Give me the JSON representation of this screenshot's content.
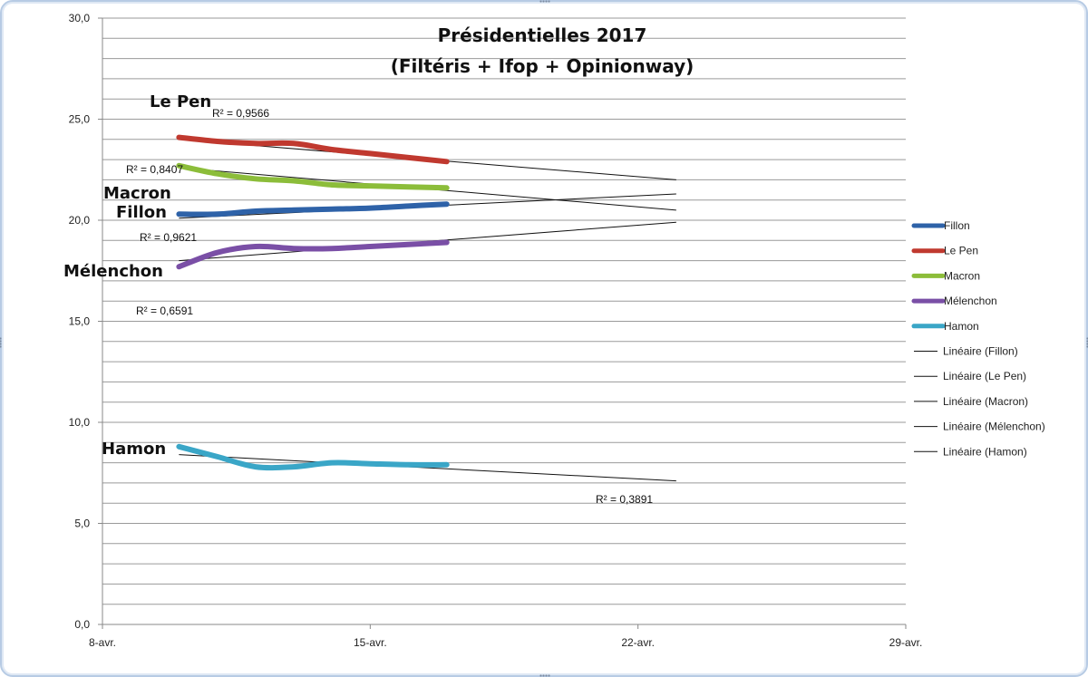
{
  "chart_data": {
    "type": "line",
    "title": "Présidentielles 2017",
    "subtitle": "(Filtéris + Ifop + Opinionway)",
    "ylim": [
      0,
      30
    ],
    "y_ticks": [
      "0,0",
      "5,0",
      "10,0",
      "15,0",
      "20,0",
      "25,0",
      "30,0"
    ],
    "x_ticks": [
      "8-avr.",
      "15-avr.",
      "22-avr.",
      "29-avr."
    ],
    "x_tick_dates": [
      "2017-04-08",
      "2017-04-15",
      "2017-04-22",
      "2017-04-29"
    ],
    "grid": true,
    "legend_position": "right",
    "series": [
      {
        "name": "Fillon",
        "color": "#2e62a8",
        "points": [
          [
            "2017-04-10",
            20.3
          ],
          [
            "2017-04-11",
            20.3
          ],
          [
            "2017-04-12",
            20.45
          ],
          [
            "2017-04-13",
            20.5
          ],
          [
            "2017-04-14",
            20.55
          ],
          [
            "2017-04-15",
            20.6
          ],
          [
            "2017-04-16",
            20.7
          ],
          [
            "2017-04-17",
            20.8
          ]
        ],
        "trend": {
          "start": [
            "2017-04-10",
            20.1
          ],
          "end": [
            "2017-04-23",
            21.3
          ],
          "r2": "R² = 0,9621"
        }
      },
      {
        "name": "Le Pen",
        "color": "#c0392f",
        "points": [
          [
            "2017-04-10",
            24.1
          ],
          [
            "2017-04-11",
            23.9
          ],
          [
            "2017-04-12",
            23.8
          ],
          [
            "2017-04-13",
            23.8
          ],
          [
            "2017-04-14",
            23.5
          ],
          [
            "2017-04-15",
            23.3
          ],
          [
            "2017-04-16",
            23.1
          ],
          [
            "2017-04-17",
            22.9
          ]
        ],
        "trend": {
          "start": [
            "2017-04-10",
            24.0
          ],
          "end": [
            "2017-04-23",
            22.0
          ],
          "r2": "R² = 0,9566"
        }
      },
      {
        "name": "Macron",
        "color": "#8cbd3a",
        "points": [
          [
            "2017-04-10",
            22.7
          ],
          [
            "2017-04-11",
            22.3
          ],
          [
            "2017-04-12",
            22.05
          ],
          [
            "2017-04-13",
            21.95
          ],
          [
            "2017-04-14",
            21.75
          ],
          [
            "2017-04-15",
            21.7
          ],
          [
            "2017-04-16",
            21.65
          ],
          [
            "2017-04-17",
            21.6
          ]
        ],
        "trend": {
          "start": [
            "2017-04-10",
            22.6
          ],
          "end": [
            "2017-04-23",
            20.5
          ],
          "r2": "R² = 0,8407"
        }
      },
      {
        "name": "Mélenchon",
        "color": "#7a4fa6",
        "points": [
          [
            "2017-04-10",
            17.7
          ],
          [
            "2017-04-11",
            18.4
          ],
          [
            "2017-04-12",
            18.7
          ],
          [
            "2017-04-13",
            18.6
          ],
          [
            "2017-04-14",
            18.6
          ],
          [
            "2017-04-15",
            18.7
          ],
          [
            "2017-04-16",
            18.8
          ],
          [
            "2017-04-17",
            18.9
          ]
        ],
        "trend": {
          "start": [
            "2017-04-10",
            18.0
          ],
          "end": [
            "2017-04-23",
            19.9
          ],
          "r2": "R² = 0,6591"
        }
      },
      {
        "name": "Hamon",
        "color": "#3aa6c7",
        "points": [
          [
            "2017-04-10",
            8.8
          ],
          [
            "2017-04-11",
            8.3
          ],
          [
            "2017-04-12",
            7.8
          ],
          [
            "2017-04-13",
            7.8
          ],
          [
            "2017-04-14",
            8.0
          ],
          [
            "2017-04-15",
            7.95
          ],
          [
            "2017-04-16",
            7.9
          ],
          [
            "2017-04-17",
            7.9
          ]
        ],
        "trend": {
          "start": [
            "2017-04-10",
            8.4
          ],
          "end": [
            "2017-04-23",
            7.1
          ],
          "r2": "R² = 0,3891"
        }
      }
    ],
    "legend": [
      "Fillon",
      "Le Pen",
      "Macron",
      "Mélenchon",
      "Hamon",
      "Linéaire (Fillon)",
      "Linéaire (Le Pen)",
      "Linéaire (Macron)",
      "Linéaire (Mélenchon)",
      "Linéaire (Hamon)"
    ],
    "annotations": [
      "Le Pen",
      "Macron",
      "Fillon",
      "Mélenchon",
      "Hamon"
    ]
  }
}
